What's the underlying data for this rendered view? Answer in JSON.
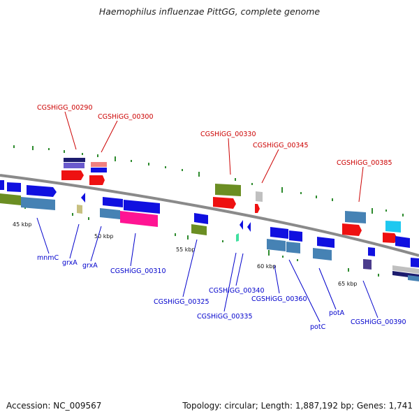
{
  "title": "Haemophilus influenzae PittGG, complete genome",
  "footer": {
    "accession": "Accession: NC_009567",
    "topology": "Topology: circular; Length: 1,887,192 bp; Genes: 1,741"
  },
  "colors": {
    "backbone": "#8a8a8a",
    "label_red": "#cc0000",
    "label_blue": "#0000cc",
    "tick_green": "#228b22",
    "gene_blue": "#1010e0",
    "gene_red": "#ee1111",
    "gene_olive": "#6b8e23",
    "gene_steel": "#4682b4",
    "gene_magenta": "#ff1493",
    "gene_navy": "#1c1c6e",
    "gene_cyan": "#1ec8f0",
    "gene_khaki": "#c8c080",
    "gene_grey": "#c0c0c0",
    "gene_purple": "#4b3c8c"
  },
  "kbp_labels": [
    "45 kbp",
    "50 kbp",
    "55 kbp",
    "60 kbp",
    "65 kbp"
  ],
  "labels_top": [
    "CGSHiGG_00290",
    "CGSHiGG_00300",
    "CGSHiGG_00330",
    "CGSHiGG_00345",
    "CGSHiGG_00385"
  ],
  "labels_bottom": [
    "mnmC",
    "grxA",
    "grxA",
    "CGSHiGG_00310",
    "CGSHiGG_00325",
    "CGSHiGG_00335",
    "CGSHiGG_00340",
    "CGSHiGG_00360",
    "potC",
    "potA",
    "CGSHiGG_00390"
  ]
}
